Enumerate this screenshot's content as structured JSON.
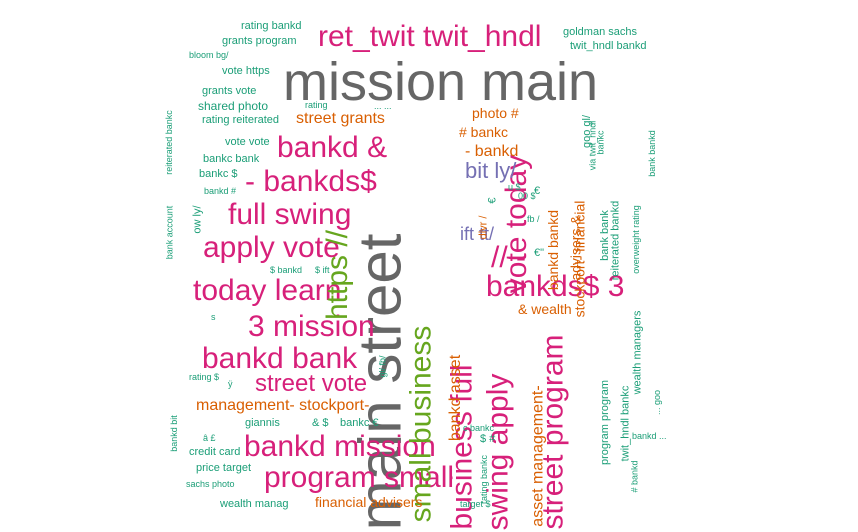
{
  "palette": {
    "gray": "#666666",
    "pink": "#d7207a",
    "green": "#66a61e",
    "orange": "#d95f02",
    "teal": "#1b9e77",
    "purple": "#7570b3"
  },
  "words": [
    {
      "text": "mission main",
      "color": "gray",
      "size": 54
    },
    {
      "text": "main street",
      "color": "gray",
      "size": 60
    },
    {
      "text": "ret_twit twit_hndl",
      "color": "pink",
      "size": 30
    },
    {
      "text": "bankd &",
      "color": "pink",
      "size": 30
    },
    {
      "text": "- bankds$",
      "color": "pink",
      "size": 30
    },
    {
      "text": "full swing",
      "color": "pink",
      "size": 30
    },
    {
      "text": "apply vote",
      "color": "pink",
      "size": 30
    },
    {
      "text": "today learn",
      "color": "pink",
      "size": 30
    },
    {
      "text": "3 mission",
      "color": "pink",
      "size": 30
    },
    {
      "text": "bankd bank",
      "color": "pink",
      "size": 30
    },
    {
      "text": "street vote",
      "color": "pink",
      "size": 24
    },
    {
      "text": "bankd mission",
      "color": "pink",
      "size": 30
    },
    {
      "text": "program small",
      "color": "pink",
      "size": 30
    },
    {
      "text": "bankds$ 3",
      "color": "pink",
      "size": 30
    },
    {
      "text": "// -",
      "color": "pink",
      "size": 30
    },
    {
      "text": "vote today",
      "color": "pink",
      "size": 30
    },
    {
      "text": "swing apply",
      "color": "pink",
      "size": 30
    },
    {
      "text": "business full",
      "color": "pink",
      "size": 30
    },
    {
      "text": "street program",
      "color": "pink",
      "size": 30
    },
    {
      "text": "https //",
      "color": "green",
      "size": 30
    },
    {
      "text": "small business",
      "color": "green",
      "size": 30
    },
    {
      "text": "bit ly/",
      "color": "purple",
      "size": 22
    },
    {
      "text": "ift tt/",
      "color": "purple",
      "size": 18
    },
    {
      "text": "street grants",
      "color": "orange",
      "size": 16
    },
    {
      "text": "photo #",
      "color": "orange",
      "size": 14
    },
    {
      "text": "# bankc",
      "color": "orange",
      "size": 14
    },
    {
      "text": "- bankd",
      "color": "orange",
      "size": 16
    },
    {
      "text": "& wealth",
      "color": "orange",
      "size": 14
    },
    {
      "text": "management- stockport-",
      "color": "orange",
      "size": 16
    },
    {
      "text": "financial advisers",
      "color": "orange",
      "size": 14
    },
    {
      "text": "bankd asset",
      "color": "orange",
      "size": 16
    },
    {
      "text": "asset management-",
      "color": "orange",
      "size": 16
    },
    {
      "text": "bankd bankd",
      "color": "orange",
      "size": 14
    },
    {
      "text": "advisers &",
      "color": "orange",
      "size": 14
    },
    {
      "text": "stockport- financial",
      "color": "orange",
      "size": 14
    },
    {
      "text": "dlvr /",
      "color": "orange",
      "size": 11
    },
    {
      "text": "rating bankd",
      "color": "teal",
      "size": 11
    },
    {
      "text": "grants program",
      "color": "teal",
      "size": 11
    },
    {
      "text": "bloom bg/",
      "color": "teal",
      "size": 9
    },
    {
      "text": "vote https",
      "color": "teal",
      "size": 11
    },
    {
      "text": "grants vote",
      "color": "teal",
      "size": 11
    },
    {
      "text": "shared photo",
      "color": "teal",
      "size": 12
    },
    {
      "text": "rating reiterated",
      "color": "teal",
      "size": 11
    },
    {
      "text": "vote vote",
      "color": "teal",
      "size": 11
    },
    {
      "text": "bankc bank",
      "color": "teal",
      "size": 11
    },
    {
      "text": "bankc $",
      "color": "teal",
      "size": 11
    },
    {
      "text": "bankd #",
      "color": "teal",
      "size": 9
    },
    {
      "text": "$ bankd",
      "color": "teal",
      "size": 9
    },
    {
      "text": "$ ift",
      "color": "teal",
      "size": 9
    },
    {
      "text": "rating $",
      "color": "teal",
      "size": 9
    },
    {
      "text": "ÿ",
      "color": "teal",
      "size": 9
    },
    {
      "text": "giannis",
      "color": "teal",
      "size": 11
    },
    {
      "text": "& $",
      "color": "teal",
      "size": 11
    },
    {
      "text": "bankc €",
      "color": "teal",
      "size": 11
    },
    {
      "text": "â £",
      "color": "teal",
      "size": 9
    },
    {
      "text": "credit card",
      "color": "teal",
      "size": 11
    },
    {
      "text": "price target",
      "color": "teal",
      "size": 11
    },
    {
      "text": "sachs photo",
      "color": "teal",
      "size": 9
    },
    {
      "text": "wealth manag",
      "color": "teal",
      "size": 11
    },
    {
      "text": "target $",
      "color": "teal",
      "size": 9
    },
    {
      "text": "c bankc",
      "color": "teal",
      "size": 9
    },
    {
      "text": "$ #",
      "color": "teal",
      "size": 11
    },
    {
      "text": "goldman sachs",
      "color": "teal",
      "size": 11
    },
    {
      "text": "twit_hndl bankd",
      "color": "teal",
      "size": 11
    },
    {
      "text": "rating",
      "color": "teal",
      "size": 9
    },
    {
      "text": "goo gl/",
      "color": "teal",
      "size": 11
    },
    {
      "text": "via twit_hndl",
      "color": "teal",
      "size": 9
    },
    {
      "text": "bankc",
      "color": "teal",
      "size": 9
    },
    {
      "text": "bank bank",
      "color": "teal",
      "size": 11
    },
    {
      "text": "reiterated bankd",
      "color": "teal",
      "size": 11
    },
    {
      "text": "overweight rating",
      "color": "teal",
      "size": 9
    },
    {
      "text": "bank bankd",
      "color": "teal",
      "size": 9
    },
    {
      "text": "reiterated bankc",
      "color": "teal",
      "size": 9
    },
    {
      "text": "bank account",
      "color": "teal",
      "size": 9
    },
    {
      "text": "ow ly/",
      "color": "teal",
      "size": 11
    },
    {
      "text": "gl/ fb/",
      "color": "teal",
      "size": 9
    },
    {
      "text": "bankd bit",
      "color": "teal",
      "size": 9
    },
    {
      "text": "program program",
      "color": "teal",
      "size": 11
    },
    {
      "text": "twit_hndl bankc",
      "color": "teal",
      "size": 11
    },
    {
      "text": "wealth managers",
      "color": "teal",
      "size": 11
    },
    {
      "text": "... goo",
      "color": "teal",
      "size": 9
    },
    {
      "text": "bankd ...",
      "color": "teal",
      "size": 9
    },
    {
      "text": "# bankd",
      "color": "teal",
      "size": 9
    },
    {
      "text": "rating bankc",
      "color": "teal",
      "size": 9
    },
    {
      "text": "fb /",
      "color": "teal",
      "size": 9
    },
    {
      "text": "00 $",
      "color": "teal",
      "size": 9
    },
    {
      "text": "u $",
      "color": "teal",
      "size": 9
    },
    {
      "text": "s",
      "color": "teal",
      "size": 9
    },
    {
      "text": "... ...",
      "color": "teal",
      "size": 9
    },
    {
      "text": "€",
      "color": "teal",
      "size": 11
    },
    {
      "text": "€",
      "color": "teal",
      "size": 11
    },
    {
      "text": "€\"",
      "color": "teal",
      "size": 11
    }
  ]
}
